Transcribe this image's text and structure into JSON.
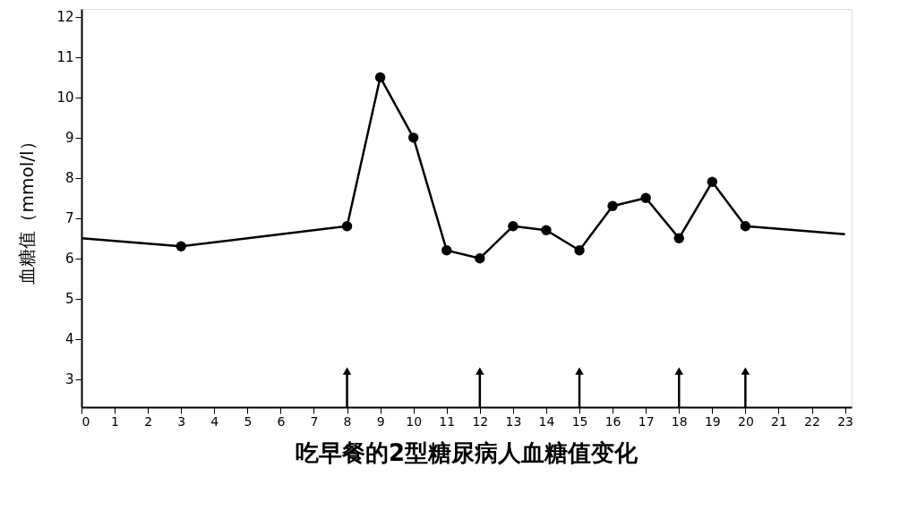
{
  "chart_data": {
    "type": "line",
    "title": "吃早餐的2型糖尿病人血糖值变化",
    "ylabel": "血糖值（mmol/l）",
    "series": [
      {
        "type": "line",
        "color": "#000000",
        "marker": "none",
        "x": [
          0,
          3,
          8,
          9,
          10,
          11,
          12,
          13,
          14,
          15,
          16,
          17,
          18,
          19,
          20,
          23
        ],
        "values": [
          6.5,
          6.3,
          6.8,
          10.5,
          9.0,
          6.2,
          6.0,
          6.8,
          6.7,
          6.2,
          7.3,
          7.5,
          6.5,
          7.9,
          6.8,
          6.6
        ]
      },
      {
        "type": "scatter",
        "color": "#000000",
        "marker": "circle",
        "x": [
          3,
          8,
          9,
          10,
          11,
          12,
          13,
          14,
          15,
          16,
          17,
          18,
          19,
          20
        ],
        "values": [
          6.3,
          6.8,
          10.5,
          9.0,
          6.2,
          6.0,
          6.8,
          6.7,
          6.2,
          7.3,
          7.5,
          6.5,
          7.9,
          6.8
        ]
      },
      {
        "type": "lollipop",
        "color": "#000000",
        "marker": "triangle",
        "x": [
          8,
          12,
          15,
          18,
          20
        ],
        "values": [
          3.2,
          3.2,
          3.2,
          3.2,
          3.2
        ]
      }
    ],
    "xlim": [
      0,
      23.2
    ],
    "xticks": [
      0,
      1,
      2,
      3,
      4,
      5,
      6,
      7,
      8,
      9,
      10,
      11,
      12,
      13,
      14,
      15,
      16,
      17,
      18,
      19,
      20,
      21,
      22,
      23
    ],
    "ylim": [
      2.3,
      12.2
    ],
    "yticks": [
      3,
      4,
      5,
      6,
      7,
      8,
      9,
      10,
      11,
      12
    ],
    "grid": false
  }
}
